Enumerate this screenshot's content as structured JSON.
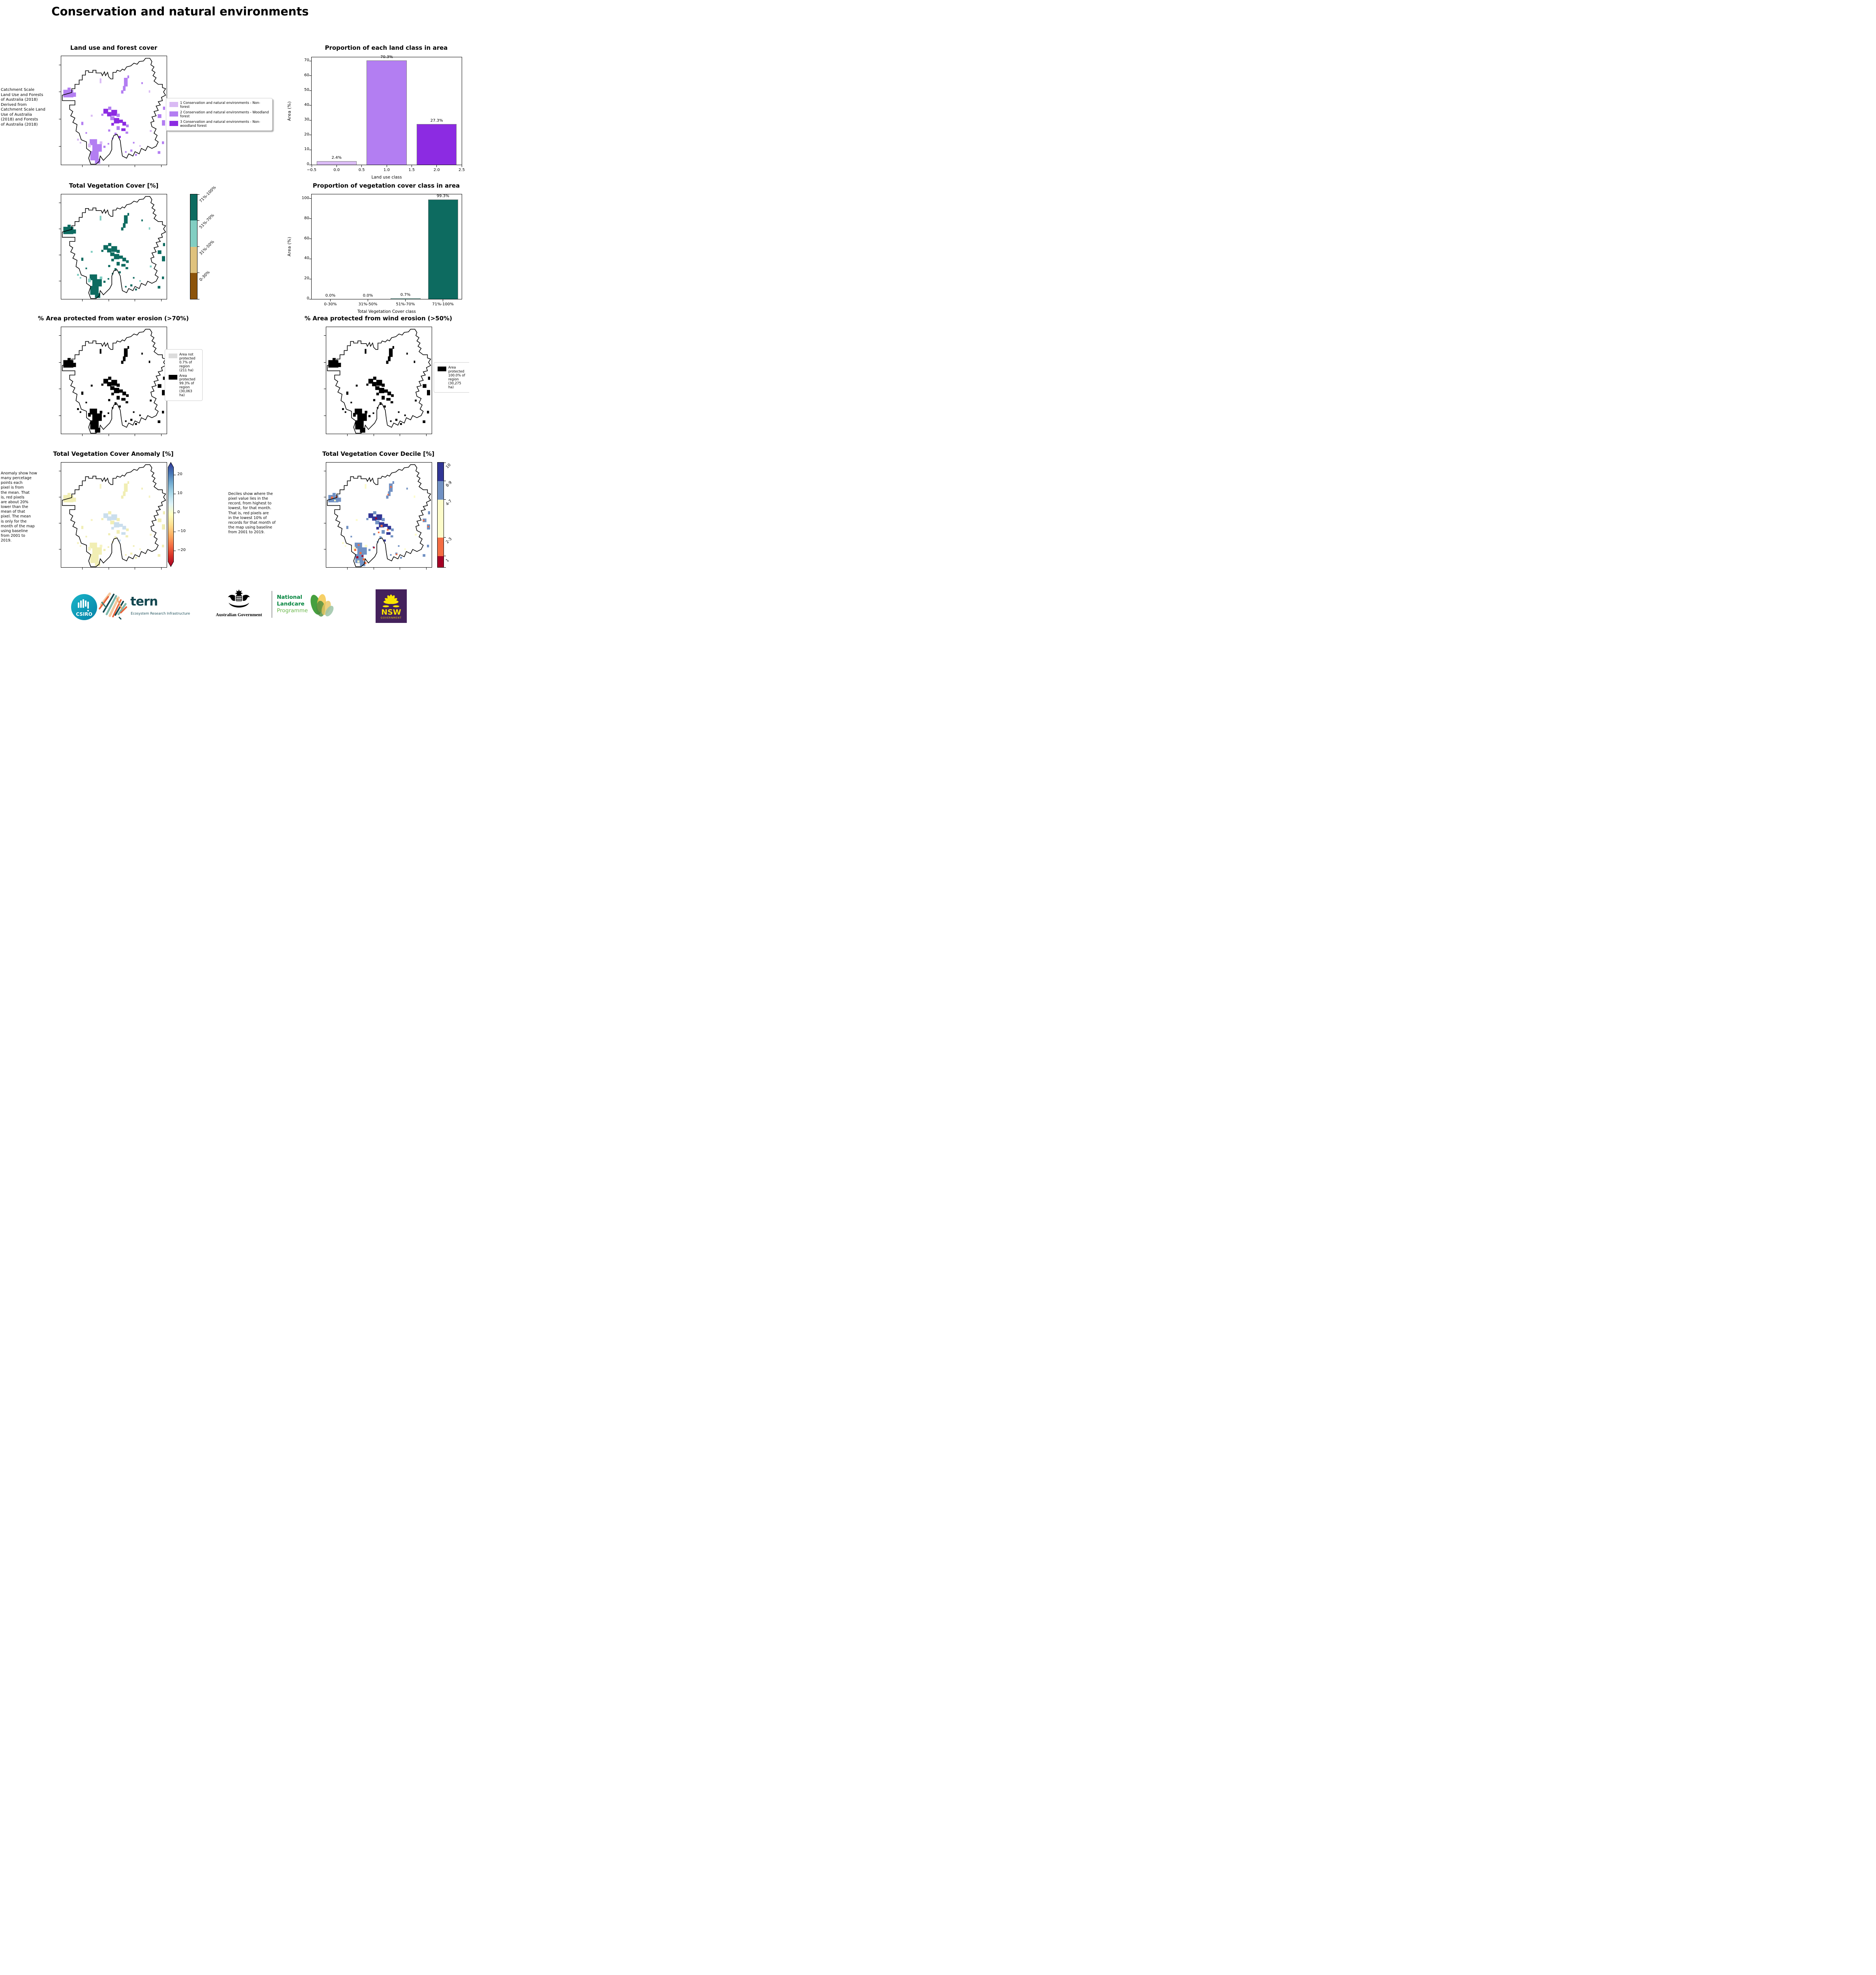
{
  "page_title": "Conservation and natural environments",
  "row1": {
    "map_title": "Land use and forest cover",
    "source_note": " Catchment Scale\nLand Use and Forests\nof Australia (2018)\nDerived from\nCatchment Scale Land\nUse of Australia\n(2018) and Forests\nof Australia (2018)",
    "legend": {
      "items": [
        {
          "label": "1 Conservation and natural environments - Non-forest",
          "color": "#d9baf4"
        },
        {
          "label": "2 Conservation and natural environments - Woodland forest",
          "color": "#b37ef2"
        },
        {
          "label": "3 Conservation and natural environments - Non-woodland forest",
          "color": "#8c2be2"
        }
      ]
    }
  },
  "row2": {
    "map_title": "Total Vegetation Cover [%]",
    "colorbar": {
      "segments": [
        {
          "label": "71%-100%",
          "color": "#0d6b60"
        },
        {
          "label": "51%-70%",
          "color": "#82cec2"
        },
        {
          "label": "31%-50%",
          "color": "#dfc27d"
        },
        {
          "label": "0-30%",
          "color": "#8c530a"
        }
      ]
    }
  },
  "row3": {
    "left_title": "% Area protected from water erosion (>70%)",
    "right_title": "% Area protected from wind erosion (>50%)",
    "water_legend": {
      "items": [
        {
          "label": "Area not\nprotected\n0.7% of\nregion\n(211 ha)",
          "color": "#dcdcdc"
        },
        {
          "label": "Area\nprotected\n99.3% of\nregion\n(30,063\nha)",
          "color": "#000000"
        }
      ]
    },
    "wind_legend": {
      "items": [
        {
          "label": "Area\nprotected\n100.0% of\nregion\n(30,275\nha)",
          "color": "#000000"
        }
      ]
    }
  },
  "row4": {
    "left_title": "Total Vegetation Cover Anomaly [%]",
    "right_title": "Total Vegetation Cover Decile [%]",
    "anomaly_note": "Anomaly show how\nmany percetage\npoints each\npixel is from\nthe mean. That\nis, red pixels\nare about 20%\nlower than the\nmean of that\npixel. The mean\nis only for the\nmonth of the map\nusing baseline\nfrom 2001 to\n2019.",
    "decile_note": "Deciles show where the\npixel value lies in the\nrecord, from highest to\nlowest, for that month.\nThat is, red pixels are\nin the lowest 10% of\nrecords for that month of\nthe map using baseline\nfrom 2001 to 2019.",
    "anomaly_colorbar": {
      "ticks": [
        "20",
        "10",
        "0",
        "−10",
        "−20"
      ],
      "gradient": [
        "#313695",
        "#4575b4",
        "#74add1",
        "#abd9e9",
        "#e0f3f8",
        "#ffffbf",
        "#fee090",
        "#fdae61",
        "#f46d43",
        "#d73027",
        "#a50026"
      ]
    },
    "decile_colorbar": {
      "segments": [
        {
          "label": "10",
          "color": "#313695",
          "frac": 0.177
        },
        {
          "label": "8-9",
          "color": "#7191c3",
          "frac": 0.177
        },
        {
          "label": "4-7",
          "color": "#fdfcca",
          "frac": 0.362
        },
        {
          "label": "2-3",
          "color": "#f46d43",
          "frac": 0.177
        },
        {
          "label": "1",
          "color": "#a50026",
          "frac": 0.107
        }
      ]
    }
  },
  "maps": {
    "palettes": {
      "landuse": {
        "l": "#d9baf4",
        "m": "#b37ef2",
        "d": "#8c2be2"
      },
      "vegcover": {
        "l": "#82cec2",
        "m": "#0d6b60",
        "d": "#0d6b60"
      },
      "erosion": {
        "l": "#000000",
        "m": "#000000",
        "d": "#000000"
      },
      "anomaly": {
        "l": "#f6f3c2",
        "m": "#f1eeb4",
        "d": "#cadeed"
      },
      "decile": {
        "l": "#fdfcca",
        "m": "#7191c3",
        "d": "#313695",
        "o": "#f46d43",
        "r": "#a50026",
        "y": "#fdfcca"
      }
    }
  },
  "chart_data": [
    {
      "type": "bar",
      "title": "Proportion of each land class in area",
      "xlabel": "Land use class",
      "ylabel": "Area (%)",
      "x": [
        0,
        1,
        2
      ],
      "values": [
        2.4,
        70.3,
        27.3
      ],
      "bar_labels": [
        "2.4%",
        "70.3%",
        "27.3%"
      ],
      "bar_colors": [
        "#d9baf4",
        "#b37ef2",
        "#8c2be2"
      ],
      "xlim": [
        -0.5,
        2.5
      ],
      "ylim": [
        0,
        72.4
      ],
      "xticks": [
        "−0.5",
        "0.0",
        "0.5",
        "1.0",
        "1.5",
        "2.0",
        "2.5"
      ],
      "yticks": [
        0,
        10,
        20,
        30,
        40,
        50,
        60,
        70
      ],
      "grid": false,
      "legend_position": "none"
    },
    {
      "type": "bar",
      "title": "Proportion of vegetation cover class in area",
      "xlabel": "Total Vegetation Cover class",
      "ylabel": "Area (%)",
      "categories": [
        "0-30%",
        "31%-50%",
        "51%-70%",
        "71%-100%"
      ],
      "values": [
        0.0,
        0.0,
        0.7,
        99.3
      ],
      "bar_labels": [
        "0.0%",
        "0.0%",
        "0.7%",
        "99.3%"
      ],
      "bar_colors": [
        "#82cec2",
        "#82cec2",
        "#82cec2",
        "#0d6b60"
      ],
      "ylim": [
        0,
        104.3
      ],
      "yticks": [
        0,
        20,
        40,
        60,
        80,
        100
      ],
      "grid": false,
      "legend_position": "none"
    }
  ],
  "footer": {
    "csiro_label": "CSIRO",
    "tern_label": "tern",
    "tern_tagline": "Ecosystem Research Infrastructure",
    "aus_gov_label": "Australian Government",
    "landcare_line1": "National",
    "landcare_line2": "Landcare",
    "landcare_line3": "Programme",
    "landcare_green": "#00843d",
    "landcare_light_green": "#67b648",
    "nsw_label": "NSW",
    "nsw_sublabel": "GOVERNMENT",
    "nsw_purple": "#44215c",
    "nsw_yellow": "#f9e300",
    "csiro_teal": "#0ba0c0",
    "tern_teal": "#12464f"
  }
}
